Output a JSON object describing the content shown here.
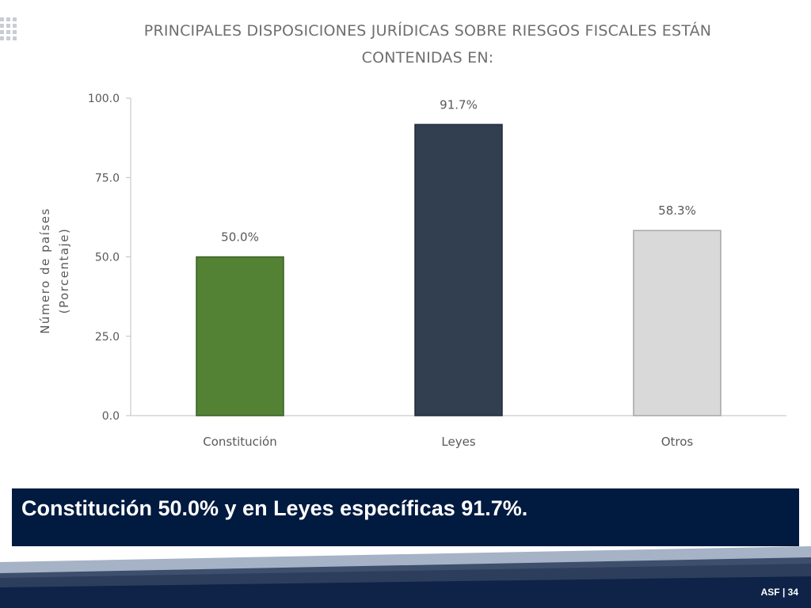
{
  "chart_data": {
    "type": "bar",
    "title_lines": [
      "PRINCIPALES DISPOSICIONES JURÍDICAS SOBRE RIESGOS FISCALES ESTÁN",
      "CONTENIDAS  EN:"
    ],
    "categories": [
      "Constitución",
      "Leyes",
      "Otros"
    ],
    "values": [
      50.0,
      91.7,
      58.3
    ],
    "data_labels": [
      "50.0%",
      "91.7%",
      "58.3%"
    ],
    "colors": [
      "#548235",
      "#323f50",
      "#d9d9d9"
    ],
    "bar_borders": [
      "#3b5e24",
      "#1f2a3a",
      "#a6a6a6"
    ],
    "ylabel_lines": [
      "Número de países",
      "(Porcentaje)"
    ],
    "ylim": [
      0,
      100
    ],
    "yticks": [
      0,
      25,
      50,
      75,
      100
    ],
    "ytick_labels": [
      "0.0",
      "25.0",
      "50.0",
      "75.0",
      "100.0"
    ],
    "grid": false
  },
  "caption": {
    "text": "Constitución 50.0% y en  Leyes específicas 91.7%."
  },
  "footer": {
    "label": "ASF | 34"
  }
}
